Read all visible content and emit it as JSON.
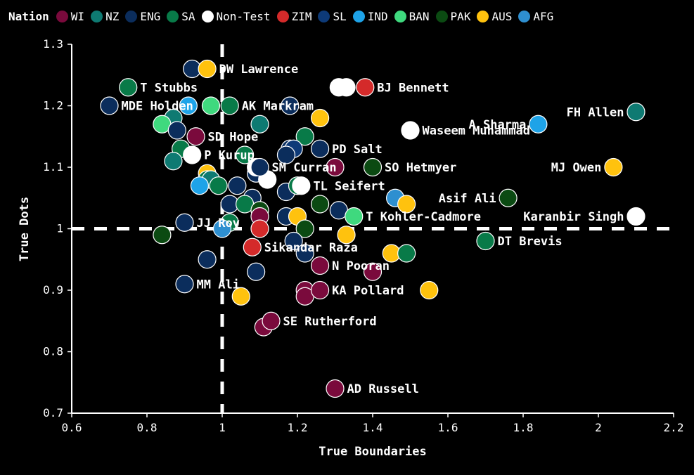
{
  "legend": {
    "title": "Nation",
    "items": [
      {
        "label": "WI",
        "color": "#7a0a3c"
      },
      {
        "label": "NZ",
        "color": "#0e7a72"
      },
      {
        "label": "ENG",
        "color": "#0b2d5c"
      },
      {
        "label": "SA",
        "color": "#087a48"
      },
      {
        "label": "Non-Test",
        "color": "#ffffff"
      },
      {
        "label": "ZIM",
        "color": "#d42a2a"
      },
      {
        "label": "SL",
        "color": "#0d3a78"
      },
      {
        "label": "IND",
        "color": "#1ea3e8"
      },
      {
        "label": "BAN",
        "color": "#3fd97e"
      },
      {
        "label": "PAK",
        "color": "#0b4a12"
      },
      {
        "label": "AUS",
        "color": "#ffc20e"
      },
      {
        "label": "AFG",
        "color": "#2e8fd0"
      }
    ]
  },
  "chart_data": {
    "type": "scatter",
    "xlabel": "True Boundaries",
    "ylabel": "True Dots",
    "xlim": [
      0.6,
      2.2
    ],
    "ylim": [
      0.7,
      1.3
    ],
    "x_ticks": [
      "0.6",
      "0.8",
      "1",
      "1.2",
      "1.4",
      "1.6",
      "1.8",
      "2",
      "2.2"
    ],
    "y_ticks": [
      "0.7",
      "0.8",
      "0.9",
      "1",
      "1.1",
      "1.2",
      "1.3"
    ],
    "reference_lines": {
      "x": 1,
      "y": 1
    },
    "points": [
      {
        "x": 0.96,
        "y": 1.26,
        "nation": "AUS",
        "label": "DW Lawrence"
      },
      {
        "x": 0.75,
        "y": 1.23,
        "nation": "SA",
        "label": "T Stubbs"
      },
      {
        "x": 1.38,
        "y": 1.23,
        "nation": "ZIM",
        "label": "BJ Bennett"
      },
      {
        "x": 0.7,
        "y": 1.2,
        "nation": "ENG",
        "label": "MDE Holden"
      },
      {
        "x": 1.02,
        "y": 1.2,
        "nation": "SA",
        "label": "AK Markram"
      },
      {
        "x": 2.1,
        "y": 1.19,
        "nation": "NZ",
        "label": "FH Allen"
      },
      {
        "x": 1.84,
        "y": 1.17,
        "nation": "IND",
        "label": "A Sharma"
      },
      {
        "x": 1.5,
        "y": 1.16,
        "nation": "Non-Test",
        "label": "Waseem Muhammad"
      },
      {
        "x": 0.93,
        "y": 1.15,
        "nation": "WI",
        "label": "SD Hope"
      },
      {
        "x": 1.26,
        "y": 1.13,
        "nation": "ENG",
        "label": "PD Salt"
      },
      {
        "x": 0.92,
        "y": 1.12,
        "nation": "Non-Test",
        "label": "P Kurup"
      },
      {
        "x": 1.1,
        "y": 1.1,
        "nation": "ENG",
        "label": "SM Curran"
      },
      {
        "x": 1.4,
        "y": 1.1,
        "nation": "PAK",
        "label": "SO Hetmyer"
      },
      {
        "x": 2.04,
        "y": 1.1,
        "nation": "AUS",
        "label": "MJ Owen"
      },
      {
        "x": 1.21,
        "y": 1.07,
        "nation": "Non-Test",
        "label": "TL Seifert"
      },
      {
        "x": 1.76,
        "y": 1.05,
        "nation": "PAK",
        "label": "Asif Ali"
      },
      {
        "x": 1.35,
        "y": 1.02,
        "nation": "BAN",
        "label": "T Kohler-Cadmore"
      },
      {
        "x": 2.1,
        "y": 1.02,
        "nation": "Non-Test",
        "label": "Karanbir Singh"
      },
      {
        "x": 0.9,
        "y": 1.01,
        "nation": "ENG",
        "label": "JJ Roy"
      },
      {
        "x": 1.7,
        "y": 0.98,
        "nation": "SA",
        "label": "DT Brevis"
      },
      {
        "x": 1.08,
        "y": 0.97,
        "nation": "ZIM",
        "label": "Sikandar Raza"
      },
      {
        "x": 1.26,
        "y": 0.94,
        "nation": "WI",
        "label": "N Pooran"
      },
      {
        "x": 0.9,
        "y": 0.91,
        "nation": "ENG",
        "label": "MM Ali"
      },
      {
        "x": 1.26,
        "y": 0.9,
        "nation": "WI",
        "label": "KA Pollard"
      },
      {
        "x": 1.13,
        "y": 0.85,
        "nation": "WI",
        "label": "SE Rutherford"
      },
      {
        "x": 1.3,
        "y": 0.74,
        "nation": "WI",
        "label": "AD Russell"
      },
      {
        "x": 0.92,
        "y": 1.26,
        "nation": "ENG"
      },
      {
        "x": 1.31,
        "y": 1.23,
        "nation": "Non-Test"
      },
      {
        "x": 1.33,
        "y": 1.23,
        "nation": "Non-Test"
      },
      {
        "x": 0.91,
        "y": 1.2,
        "nation": "IND"
      },
      {
        "x": 0.97,
        "y": 1.2,
        "nation": "BAN"
      },
      {
        "x": 1.18,
        "y": 1.2,
        "nation": "ENG"
      },
      {
        "x": 0.87,
        "y": 1.18,
        "nation": "NZ"
      },
      {
        "x": 0.84,
        "y": 1.17,
        "nation": "BAN"
      },
      {
        "x": 1.1,
        "y": 1.17,
        "nation": "NZ"
      },
      {
        "x": 1.26,
        "y": 1.18,
        "nation": "AUS"
      },
      {
        "x": 0.88,
        "y": 1.16,
        "nation": "ENG"
      },
      {
        "x": 1.22,
        "y": 1.15,
        "nation": "SA"
      },
      {
        "x": 0.89,
        "y": 1.13,
        "nation": "SA"
      },
      {
        "x": 1.18,
        "y": 1.13,
        "nation": "ENG"
      },
      {
        "x": 1.19,
        "y": 1.13,
        "nation": "SL"
      },
      {
        "x": 1.17,
        "y": 1.12,
        "nation": "ENG"
      },
      {
        "x": 0.87,
        "y": 1.11,
        "nation": "NZ"
      },
      {
        "x": 1.06,
        "y": 1.12,
        "nation": "SA"
      },
      {
        "x": 1.3,
        "y": 1.1,
        "nation": "WI"
      },
      {
        "x": 1.09,
        "y": 1.09,
        "nation": "ENG"
      },
      {
        "x": 1.09,
        "y": 1.1,
        "nation": "Non-Test"
      },
      {
        "x": 0.96,
        "y": 1.09,
        "nation": "AUS"
      },
      {
        "x": 1.12,
        "y": 1.08,
        "nation": "Non-Test"
      },
      {
        "x": 0.96,
        "y": 1.08,
        "nation": "SA"
      },
      {
        "x": 0.97,
        "y": 1.08,
        "nation": "NZ"
      },
      {
        "x": 0.99,
        "y": 1.07,
        "nation": "SA"
      },
      {
        "x": 0.94,
        "y": 1.07,
        "nation": "IND"
      },
      {
        "x": 1.04,
        "y": 1.07,
        "nation": "ENG"
      },
      {
        "x": 1.17,
        "y": 1.06,
        "nation": "ENG"
      },
      {
        "x": 1.2,
        "y": 1.07,
        "nation": "SA"
      },
      {
        "x": 1.46,
        "y": 1.05,
        "nation": "AFG"
      },
      {
        "x": 1.49,
        "y": 1.04,
        "nation": "AUS"
      },
      {
        "x": 1.08,
        "y": 1.05,
        "nation": "ENG"
      },
      {
        "x": 1.02,
        "y": 1.04,
        "nation": "ENG"
      },
      {
        "x": 1.06,
        "y": 1.04,
        "nation": "SA"
      },
      {
        "x": 1.26,
        "y": 1.04,
        "nation": "PAK"
      },
      {
        "x": 1.31,
        "y": 1.03,
        "nation": "ENG"
      },
      {
        "x": 1.1,
        "y": 1.03,
        "nation": "PAK"
      },
      {
        "x": 1.17,
        "y": 1.02,
        "nation": "ENG"
      },
      {
        "x": 1.2,
        "y": 1.02,
        "nation": "AUS"
      },
      {
        "x": 1.1,
        "y": 1.02,
        "nation": "WI"
      },
      {
        "x": 1.02,
        "y": 1.01,
        "nation": "SA"
      },
      {
        "x": 1.0,
        "y": 1.0,
        "nation": "AFG"
      },
      {
        "x": 1.1,
        "y": 1.0,
        "nation": "ZIM"
      },
      {
        "x": 1.22,
        "y": 1.0,
        "nation": "PAK"
      },
      {
        "x": 0.84,
        "y": 0.99,
        "nation": "PAK"
      },
      {
        "x": 1.33,
        "y": 0.99,
        "nation": "AUS"
      },
      {
        "x": 1.19,
        "y": 0.98,
        "nation": "ENG"
      },
      {
        "x": 1.22,
        "y": 0.96,
        "nation": "ENG"
      },
      {
        "x": 1.45,
        "y": 0.96,
        "nation": "AUS"
      },
      {
        "x": 1.49,
        "y": 0.96,
        "nation": "SA"
      },
      {
        "x": 0.96,
        "y": 0.95,
        "nation": "ENG"
      },
      {
        "x": 1.09,
        "y": 0.93,
        "nation": "ENG"
      },
      {
        "x": 1.4,
        "y": 0.93,
        "nation": "WI"
      },
      {
        "x": 1.55,
        "y": 0.9,
        "nation": "AUS"
      },
      {
        "x": 1.05,
        "y": 0.89,
        "nation": "AUS"
      },
      {
        "x": 1.22,
        "y": 0.9,
        "nation": "WI"
      },
      {
        "x": 1.22,
        "y": 0.89,
        "nation": "WI"
      },
      {
        "x": 1.11,
        "y": 0.84,
        "nation": "WI"
      }
    ]
  }
}
